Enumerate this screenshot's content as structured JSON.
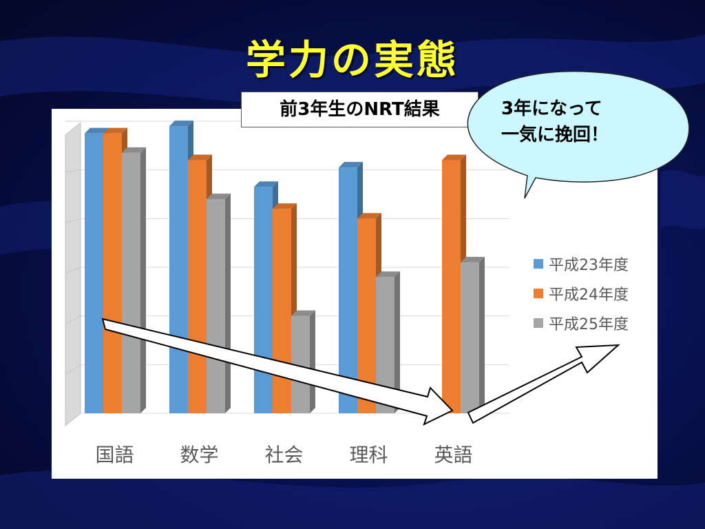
{
  "slide": {
    "title": "学力の実態",
    "subtitle": "前3年生のNRT結果",
    "callout": {
      "lines": [
        "3年になって",
        "一気に挽回！"
      ]
    }
  },
  "colors": {
    "series1": "#5b9bd5",
    "series2": "#ed7d31",
    "series3": "#a5a5a5",
    "title": "#ffff33",
    "callout_fill": "#ccf7ff"
  },
  "chart_data": {
    "type": "bar",
    "style": "3d-clustered-column",
    "categories": [
      "国語",
      "数学",
      "社会",
      "理科",
      "英語"
    ],
    "series": [
      {
        "name": "平成23年度",
        "color": "#5b9bd5",
        "values": [
          57.5,
          59,
          46.5,
          50.5,
          null
        ]
      },
      {
        "name": "平成24年度",
        "color": "#ed7d31",
        "values": [
          57.5,
          52,
          42,
          40,
          52
        ]
      },
      {
        "name": "平成25年度",
        "color": "#a5a5a5",
        "values": [
          53.5,
          44,
          20,
          28,
          31
        ]
      }
    ],
    "ylim": [
      0,
      60
    ],
    "yticks_shown": false,
    "grid": true,
    "legend_position": "right"
  }
}
